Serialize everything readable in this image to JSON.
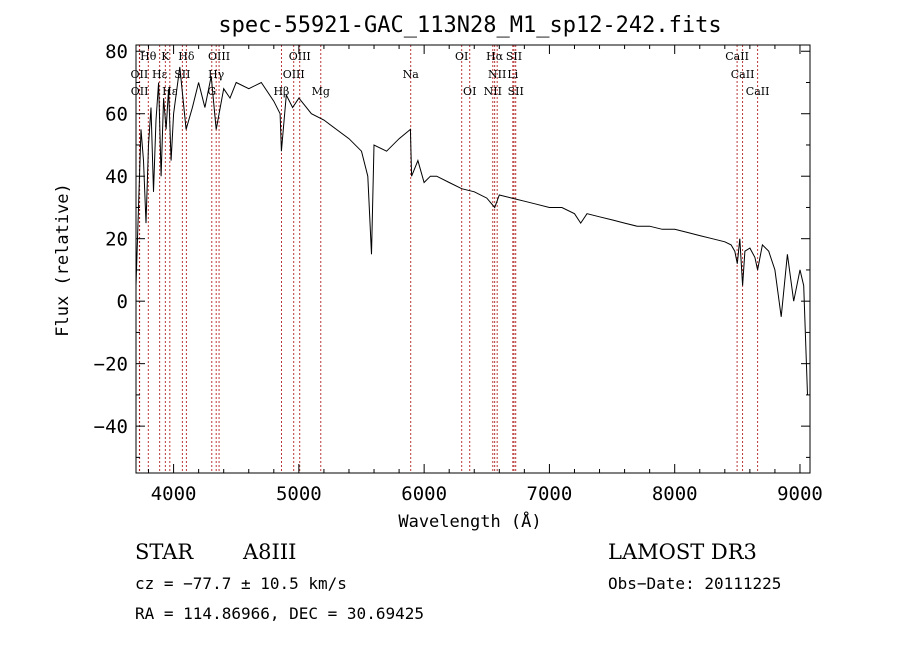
{
  "chart_data": {
    "type": "line",
    "title": "spec-55921-GAC_113N28_M1_sp12-242.fits",
    "xlabel": "Wavelength (Å)",
    "ylabel": "Flux (relative)",
    "xlim": [
      3700,
      9080
    ],
    "ylim": [
      -55,
      82
    ],
    "x_ticks": [
      4000,
      5000,
      6000,
      7000,
      8000,
      9000
    ],
    "x_tick_labels": [
      "4000",
      "5000",
      "6000",
      "7000",
      "8000",
      "9000"
    ],
    "y_ticks": [
      -40,
      -20,
      0,
      20,
      40,
      60,
      80
    ],
    "y_tick_labels": [
      "−40",
      "−20",
      "0",
      "20",
      "40",
      "60",
      "80"
    ],
    "series": [
      {
        "name": "spectrum",
        "x": [
          3700,
          3720,
          3740,
          3760,
          3780,
          3800,
          3820,
          3840,
          3860,
          3880,
          3900,
          3920,
          3940,
          3960,
          3980,
          4000,
          4050,
          4100,
          4150,
          4200,
          4250,
          4300,
          4340,
          4400,
          4450,
          4500,
          4600,
          4700,
          4800,
          4850,
          4861,
          4900,
          4950,
          5000,
          5100,
          5200,
          5300,
          5400,
          5500,
          5550,
          5580,
          5600,
          5700,
          5800,
          5890,
          5900,
          5950,
          6000,
          6050,
          6100,
          6200,
          6300,
          6400,
          6500,
          6563,
          6600,
          6700,
          6800,
          6900,
          7000,
          7100,
          7200,
          7250,
          7300,
          7400,
          7500,
          7600,
          7700,
          7800,
          7900,
          8000,
          8100,
          8200,
          8300,
          8400,
          8450,
          8480,
          8500,
          8520,
          8542,
          8560,
          8600,
          8640,
          8662,
          8700,
          8750,
          8800,
          8850,
          8900,
          8950,
          9000,
          9030,
          9060
        ],
        "y": [
          5,
          30,
          55,
          45,
          25,
          50,
          62,
          35,
          58,
          70,
          40,
          65,
          55,
          68,
          45,
          60,
          75,
          55,
          62,
          70,
          62,
          72,
          55,
          68,
          65,
          70,
          68,
          70,
          64,
          60,
          48,
          66,
          62,
          65,
          60,
          58,
          55,
          52,
          48,
          40,
          15,
          50,
          48,
          52,
          55,
          40,
          45,
          38,
          40,
          40,
          38,
          36,
          35,
          33,
          30,
          34,
          33,
          32,
          31,
          30,
          30,
          28,
          25,
          28,
          27,
          26,
          25,
          24,
          24,
          23,
          23,
          22,
          21,
          20,
          19,
          18,
          16,
          12,
          20,
          5,
          16,
          17,
          14,
          10,
          18,
          16,
          10,
          -5,
          15,
          0,
          10,
          5,
          -30
        ]
      }
    ],
    "spectral_lines": [
      {
        "label": "Hθ",
        "x": 3798,
        "row": 0
      },
      {
        "label": "K",
        "x": 3934,
        "row": 0
      },
      {
        "label": "Hδ",
        "x": 4102,
        "row": 0
      },
      {
        "label": "OIII",
        "x": 4363,
        "row": 0
      },
      {
        "label": "OIII",
        "x": 5007,
        "row": 0
      },
      {
        "label": "OI",
        "x": 6300,
        "row": 0
      },
      {
        "label": "Hα",
        "x": 6563,
        "row": 0
      },
      {
        "label": "SII",
        "x": 6717,
        "row": 0
      },
      {
        "label": "CaII",
        "x": 8498,
        "row": 0
      },
      {
        "label": "OII",
        "x": 3727,
        "row": 1
      },
      {
        "label": "Hε",
        "x": 3889,
        "row": 1
      },
      {
        "label": "SII",
        "x": 4070,
        "row": 1
      },
      {
        "label": "Hγ",
        "x": 4340,
        "row": 1
      },
      {
        "label": "OIII",
        "x": 4959,
        "row": 1
      },
      {
        "label": "Na",
        "x": 5893,
        "row": 1
      },
      {
        "label": "NII",
        "x": 6583,
        "row": 1
      },
      {
        "label": "Li",
        "x": 6708,
        "row": 1
      },
      {
        "label": "CaII",
        "x": 8542,
        "row": 1
      },
      {
        "label": "OII",
        "x": 3729,
        "row": 2
      },
      {
        "label": "Hε",
        "x": 3970,
        "row": 2
      },
      {
        "label": "G",
        "x": 4305,
        "row": 2
      },
      {
        "label": "Hβ",
        "x": 4861,
        "row": 2
      },
      {
        "label": "Mg",
        "x": 5175,
        "row": 2
      },
      {
        "label": "OI",
        "x": 6364,
        "row": 2
      },
      {
        "label": "NII",
        "x": 6548,
        "row": 2
      },
      {
        "label": "SII",
        "x": 6731,
        "row": 2
      },
      {
        "label": "CaII",
        "x": 8662,
        "row": 2
      }
    ]
  },
  "info": {
    "class": "STAR",
    "subclass": "A8III",
    "survey": "LAMOST DR3",
    "cz": "cz = −77.7 ± 10.5 km/s",
    "obs_date": "Obs−Date: 20111225",
    "radec": "RA = 114.86966, DEC =  30.69425"
  },
  "colors": {
    "spectrum": "#000000",
    "line_markers": "#b22222"
  }
}
